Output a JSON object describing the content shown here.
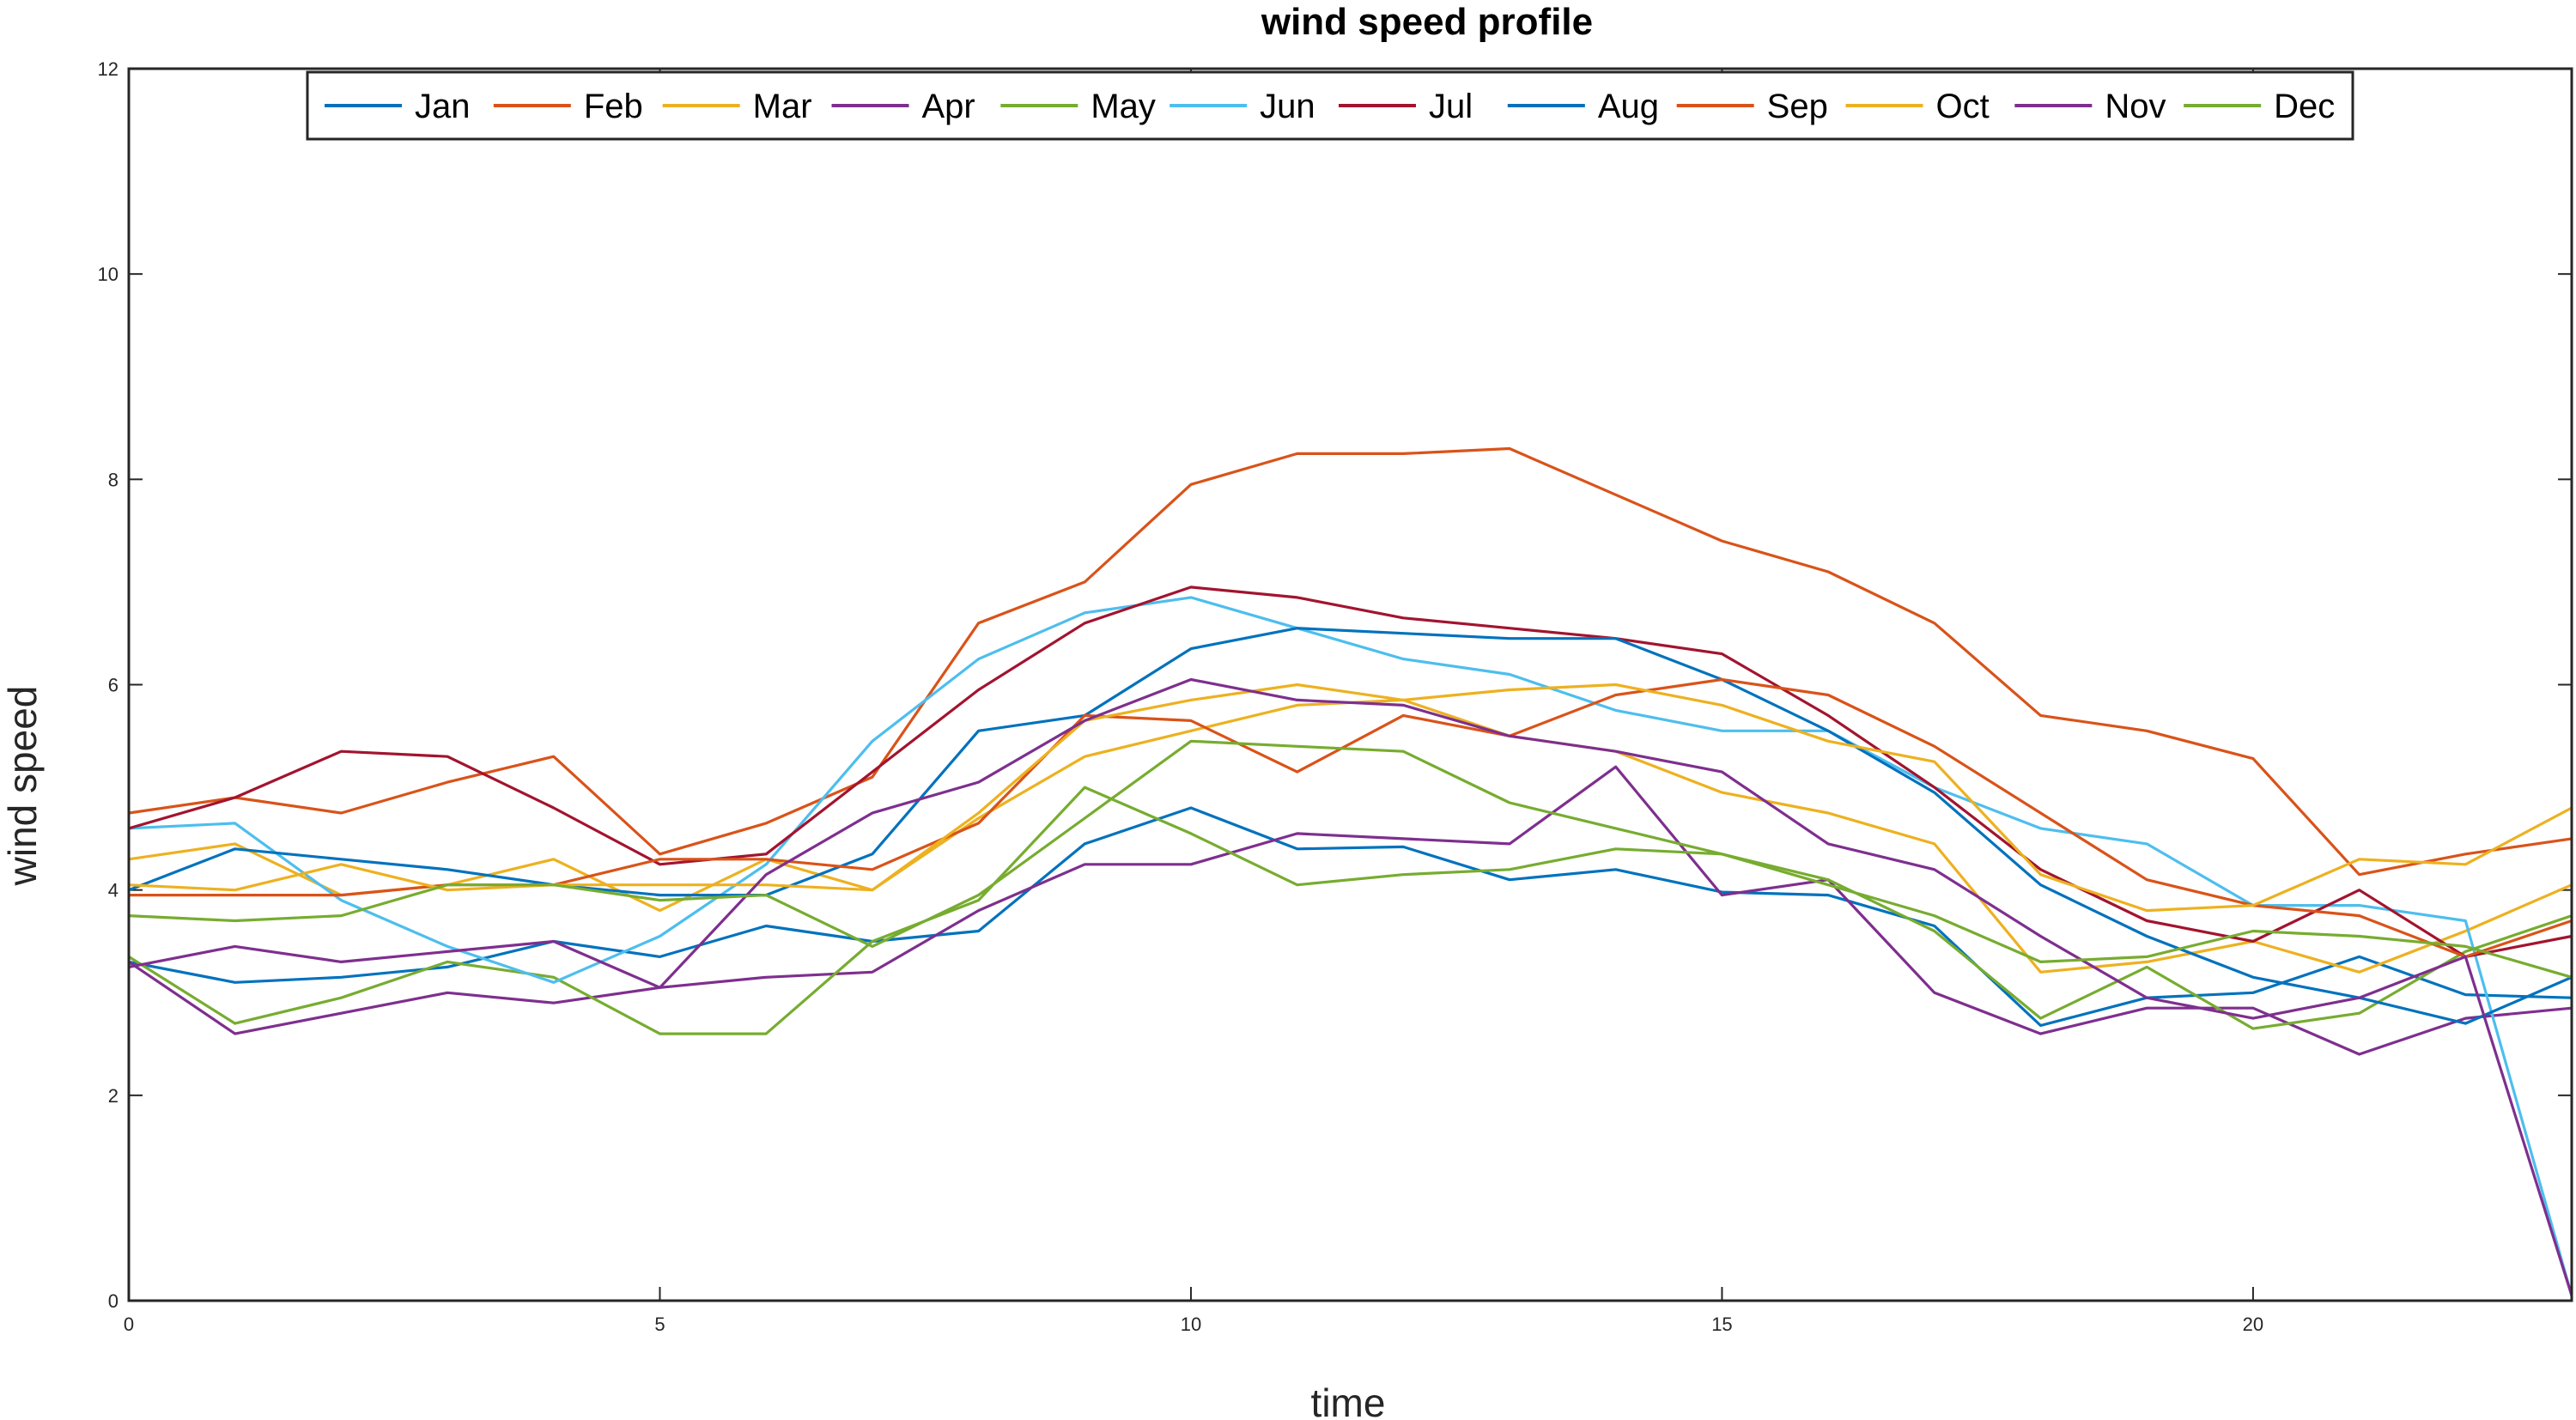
{
  "chart_data": {
    "type": "line",
    "title": "wind speed profile",
    "xlabel": "time",
    "ylabel": "wind speed",
    "xlim": [
      0,
      23
    ],
    "ylim": [
      0,
      12
    ],
    "xticks": [
      0,
      5,
      10,
      15,
      20
    ],
    "yticks": [
      0,
      2,
      4,
      6,
      8,
      10,
      12
    ],
    "legend_position": "top",
    "x": [
      0,
      1,
      2,
      3,
      4,
      5,
      6,
      7,
      8,
      9,
      10,
      11,
      12,
      13,
      14,
      15,
      16,
      17,
      18,
      19,
      20,
      21,
      22,
      23
    ],
    "series": [
      {
        "name": "Jan",
        "color": "#0072BD",
        "values": [
          3.3,
          3.1,
          3.15,
          3.25,
          3.5,
          3.35,
          3.65,
          3.5,
          3.6,
          4.45,
          4.8,
          4.4,
          4.42,
          4.1,
          4.2,
          3.98,
          3.95,
          3.65,
          2.68,
          2.95,
          3.0,
          3.35,
          2.98,
          2.95
        ]
      },
      {
        "name": "Feb",
        "color": "#D95319",
        "values": [
          4.75,
          4.9,
          4.75,
          5.05,
          5.3,
          4.35,
          4.65,
          5.1,
          6.6,
          7.0,
          7.95,
          8.25,
          8.25,
          8.3,
          7.85,
          7.4,
          7.1,
          6.6,
          5.7,
          5.55,
          5.28,
          4.15,
          4.35,
          4.5
        ]
      },
      {
        "name": "Mar",
        "color": "#EDB120",
        "values": [
          4.3,
          4.45,
          3.95,
          4.05,
          4.3,
          3.8,
          4.3,
          4.0,
          4.7,
          5.3,
          5.55,
          5.8,
          5.85,
          5.5,
          5.35,
          4.95,
          4.75,
          4.45,
          3.2,
          3.3,
          3.5,
          3.2,
          3.6,
          4.05
        ]
      },
      {
        "name": "Apr",
        "color": "#7E2F8E",
        "values": [
          3.3,
          2.6,
          2.8,
          3.0,
          2.9,
          3.05,
          3.15,
          3.2,
          3.8,
          4.25,
          4.25,
          4.55,
          4.5,
          4.45,
          5.2,
          3.95,
          4.1,
          3.0,
          2.6,
          2.85,
          2.85,
          2.4,
          2.75,
          2.85
        ]
      },
      {
        "name": "May",
        "color": "#77AC30",
        "values": [
          3.35,
          2.7,
          2.95,
          3.3,
          3.15,
          2.6,
          2.6,
          3.5,
          3.9,
          5.0,
          4.55,
          4.05,
          4.15,
          4.2,
          4.4,
          4.35,
          4.1,
          3.6,
          2.75,
          3.25,
          2.65,
          2.8,
          3.4,
          3.75
        ]
      },
      {
        "name": "Jun",
        "color": "#4DBEEE",
        "values": [
          4.6,
          4.65,
          3.9,
          3.45,
          3.1,
          3.55,
          4.25,
          5.45,
          6.25,
          6.7,
          6.85,
          6.55,
          6.25,
          6.1,
          5.75,
          5.55,
          5.55,
          5.0,
          4.6,
          4.45,
          3.85,
          3.85,
          3.7,
          0.05
        ]
      },
      {
        "name": "Jul",
        "color": "#A2142F",
        "values": [
          4.6,
          4.9,
          5.35,
          5.3,
          4.8,
          4.25,
          4.35,
          5.15,
          5.95,
          6.6,
          6.95,
          6.85,
          6.65,
          6.55,
          6.45,
          6.3,
          5.7,
          5.0,
          4.2,
          3.7,
          3.5,
          4.0,
          3.35,
          3.55
        ]
      },
      {
        "name": "Aug",
        "color": "#0072BD",
        "values": [
          4.0,
          4.4,
          4.3,
          4.2,
          4.05,
          3.95,
          3.95,
          4.35,
          5.55,
          5.7,
          6.35,
          6.55,
          6.5,
          6.45,
          6.45,
          6.05,
          5.55,
          4.95,
          4.05,
          3.55,
          3.15,
          2.95,
          2.7,
          3.15
        ]
      },
      {
        "name": "Sep",
        "color": "#D95319",
        "values": [
          3.95,
          3.95,
          3.95,
          4.05,
          4.05,
          4.3,
          4.3,
          4.2,
          4.65,
          5.7,
          5.65,
          5.15,
          5.7,
          5.5,
          5.9,
          6.05,
          5.9,
          5.4,
          4.75,
          4.1,
          3.85,
          3.75,
          3.35,
          3.7
        ]
      },
      {
        "name": "Oct",
        "color": "#EDB120",
        "values": [
          4.05,
          4.0,
          4.25,
          4.0,
          4.05,
          4.05,
          4.05,
          4.0,
          4.75,
          5.65,
          5.85,
          6.0,
          5.85,
          5.95,
          6.0,
          5.8,
          5.45,
          5.25,
          4.15,
          3.8,
          3.85,
          4.3,
          4.25,
          4.8
        ]
      },
      {
        "name": "Nov",
        "color": "#7E2F8E",
        "values": [
          3.25,
          3.45,
          3.3,
          3.4,
          3.5,
          3.05,
          4.15,
          4.75,
          5.05,
          5.65,
          6.05,
          5.85,
          5.8,
          5.5,
          5.35,
          5.15,
          4.45,
          4.2,
          3.55,
          2.95,
          2.75,
          2.95,
          3.35,
          0.05
        ]
      },
      {
        "name": "Dec",
        "color": "#77AC30",
        "values": [
          3.75,
          3.7,
          3.75,
          4.05,
          4.05,
          3.9,
          3.95,
          3.45,
          3.95,
          4.7,
          5.45,
          5.4,
          5.35,
          4.85,
          4.6,
          4.35,
          4.05,
          3.75,
          3.3,
          3.35,
          3.6,
          3.55,
          3.45,
          3.15
        ]
      }
    ]
  }
}
